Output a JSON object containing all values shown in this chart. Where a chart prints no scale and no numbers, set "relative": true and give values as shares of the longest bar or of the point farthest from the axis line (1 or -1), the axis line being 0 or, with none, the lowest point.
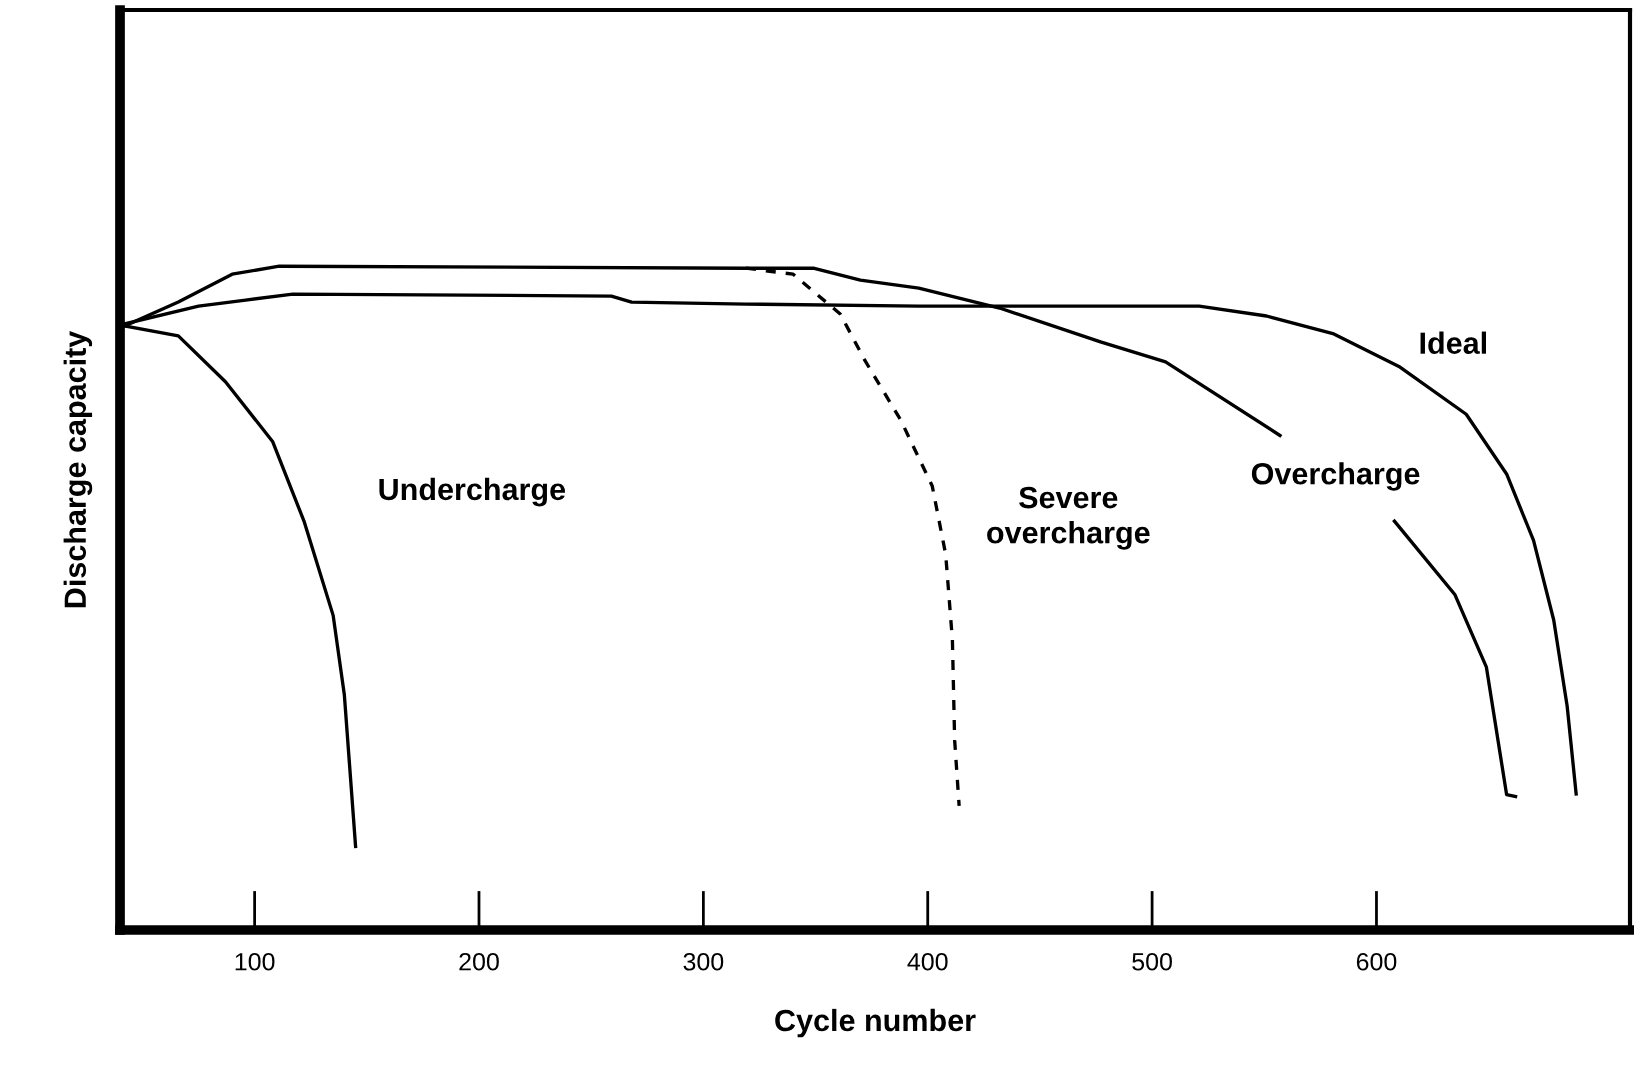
{
  "chart_data": {
    "type": "line",
    "xlabel": "Cycle number",
    "ylabel": "Discharge capacity",
    "relative": true,
    "xlim": [
      40,
      713
    ],
    "xticks": [
      100,
      200,
      300,
      400,
      500,
      600
    ],
    "tick_labels": "x",
    "grid": false,
    "marker": "none",
    "series": [
      {
        "name": "Undercharge",
        "color": "#000000",
        "line_style": "solid",
        "x": [
          42,
          66,
          87,
          108,
          122,
          135,
          140,
          145
        ],
        "values": [
          0.91,
          0.895,
          0.826,
          0.736,
          0.616,
          0.474,
          0.354,
          0.126
        ]
      },
      {
        "name": "Overcharge",
        "color": "#000000",
        "line_style": "solid",
        "x": [
          42,
          66,
          90,
          111,
          319,
          349,
          370,
          396,
          432,
          477,
          506,
          557,
          580,
          608,
          635,
          649,
          658,
          662
        ],
        "values": [
          0.91,
          0.946,
          0.988,
          1.0,
          0.997,
          0.997,
          0.979,
          0.967,
          0.937,
          0.886,
          0.856,
          0.745,
          null,
          0.616,
          0.505,
          0.396,
          0.204,
          0.201
        ]
      },
      {
        "name": "Severe\novercharge",
        "color": "#000000",
        "line_style": "dashed",
        "x": [
          319,
          340,
          361,
          372,
          388,
          402,
          408,
          411,
          412,
          414
        ],
        "values": [
          0.997,
          0.988,
          0.928,
          0.858,
          0.768,
          0.669,
          0.566,
          0.437,
          0.286,
          0.187
        ]
      },
      {
        "name": "Ideal",
        "color": "#000000",
        "line_style": "solid",
        "x": [
          42,
          75,
          96,
          117,
          259,
          268,
          319,
          396,
          432,
          521,
          551,
          581,
          610,
          640,
          658,
          670,
          679,
          685,
          689
        ],
        "values": [
          0.913,
          0.94,
          0.949,
          0.958,
          0.955,
          0.946,
          0.943,
          0.94,
          0.94,
          0.94,
          0.925,
          0.898,
          0.849,
          0.777,
          0.687,
          0.587,
          0.467,
          0.337,
          0.205
        ]
      }
    ]
  }
}
